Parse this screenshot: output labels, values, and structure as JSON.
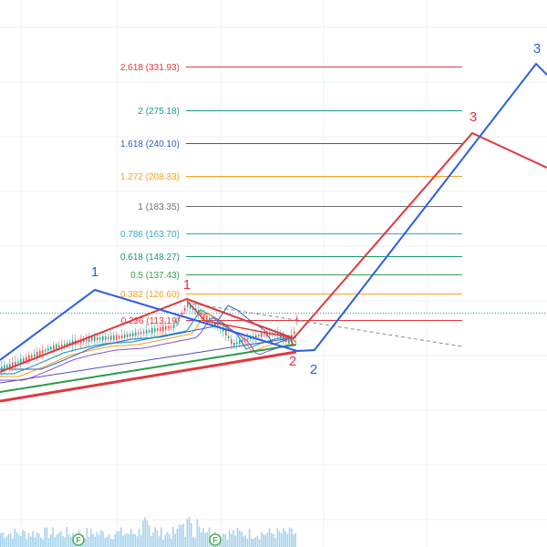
{
  "chart_data": {
    "type": "line",
    "description_note": "",
    "fib_levels": [
      {
        "ratio": "2.618",
        "price": "331.93",
        "color": "#e0383e"
      },
      {
        "ratio": "2",
        "price": "275.18",
        "color": "#1a9a8a"
      },
      {
        "ratio": "1.618",
        "price": "240.10",
        "color": "#2a5fbf"
      },
      {
        "ratio": "1.272",
        "price": "208.33",
        "color": "#f5a020"
      },
      {
        "ratio": "1",
        "price": "183.35",
        "color": "#6f6f6f"
      },
      {
        "ratio": "0.786",
        "price": "163.70",
        "color": "#3aa6c9"
      },
      {
        "ratio": "0.618",
        "price": "148.27",
        "color": "#1a9a6a"
      },
      {
        "ratio": "0.5",
        "price": "137.43",
        "color": "#3aa04a"
      },
      {
        "ratio": "0.382",
        "price": "126.60",
        "color": "#f5a020"
      },
      {
        "ratio": "0.236",
        "price": "113.19",
        "color": "#e0383e"
      }
    ],
    "wave_labels": {
      "blue": [
        "1",
        "2",
        "3"
      ],
      "red": [
        "1",
        "2",
        "3"
      ]
    },
    "colors": {
      "blue_wave": "#2a5fe0",
      "red_wave": "#e0383e",
      "current_price": "#1a9aa0",
      "ema_green": "#2a9a4a",
      "ema_red": "#e0383e",
      "candle_up": "#26a69a",
      "candle_down": "#ef5350",
      "volume": "#90c8e8",
      "event_badge": "#4caf50"
    },
    "events": [
      "F",
      "F"
    ]
  }
}
